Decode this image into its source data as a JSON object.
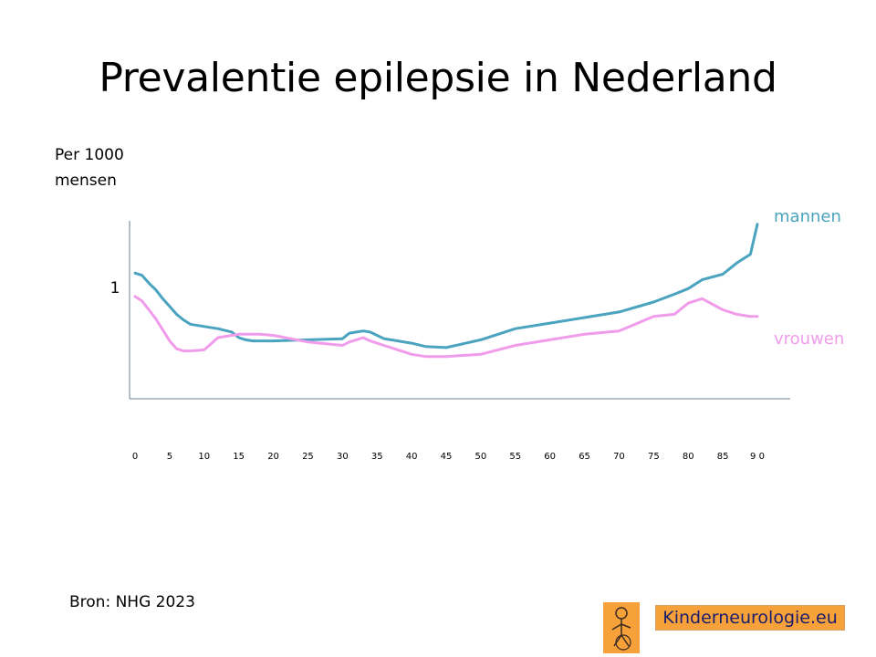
{
  "slide": {
    "title": "Prevalentie epilepsie in Nederland",
    "ylabel_line1": "Per 1000",
    "ylabel_line2": "mensen",
    "source": "Bron: NHG 2023",
    "logo_text": "Kinderneurologie.eu",
    "logo_icon": "child-figure-icon"
  },
  "chart_data": {
    "type": "line",
    "x": [
      0,
      1,
      2,
      3,
      4,
      5,
      6,
      7,
      8,
      10,
      12,
      14,
      15,
      16,
      17,
      18,
      20,
      25,
      30,
      31,
      32,
      33,
      34,
      35,
      36,
      37,
      38,
      40,
      42,
      45,
      50,
      55,
      60,
      65,
      70,
      75,
      78,
      80,
      82,
      85,
      87,
      89,
      90
    ],
    "x_tick_labels": [
      "0",
      "5",
      "10",
      "15",
      "20",
      "25",
      "30",
      "35",
      "40",
      "45",
      "50",
      "55",
      "60",
      "65",
      "70",
      "75",
      "80",
      "85",
      "9 0"
    ],
    "x_tick_values": [
      0,
      5,
      10,
      15,
      20,
      25,
      30,
      35,
      40,
      45,
      50,
      55,
      60,
      65,
      70,
      75,
      80,
      85,
      90
    ],
    "y_tick_labels": [
      "1"
    ],
    "y_tick_values": [
      1.0
    ],
    "ylim": [
      0,
      1.6
    ],
    "series": [
      {
        "name": "mannen",
        "color": "#4aa3bf",
        "values": [
          1.13,
          1.11,
          1.04,
          0.98,
          0.9,
          0.83,
          0.76,
          0.71,
          0.67,
          0.65,
          0.63,
          0.6,
          0.55,
          0.53,
          0.52,
          0.52,
          0.52,
          0.53,
          0.54,
          0.59,
          0.6,
          0.61,
          0.6,
          0.57,
          0.54,
          0.53,
          0.52,
          0.5,
          0.47,
          0.46,
          0.53,
          0.63,
          0.68,
          0.73,
          0.78,
          0.87,
          0.94,
          0.99,
          1.07,
          1.12,
          1.22,
          1.3,
          1.57
        ]
      },
      {
        "name": "vrouwen",
        "color": "#f19ceb",
        "values": [
          0.92,
          0.88,
          0.8,
          0.72,
          0.62,
          0.52,
          0.45,
          0.43,
          0.43,
          0.44,
          0.55,
          0.57,
          0.58,
          0.58,
          0.58,
          0.58,
          0.57,
          0.51,
          0.48,
          0.51,
          0.53,
          0.55,
          0.52,
          0.5,
          0.48,
          0.46,
          0.44,
          0.4,
          0.38,
          0.38,
          0.4,
          0.48,
          0.53,
          0.58,
          0.61,
          0.74,
          0.76,
          0.86,
          0.9,
          0.8,
          0.76,
          0.74,
          0.74
        ]
      }
    ]
  }
}
